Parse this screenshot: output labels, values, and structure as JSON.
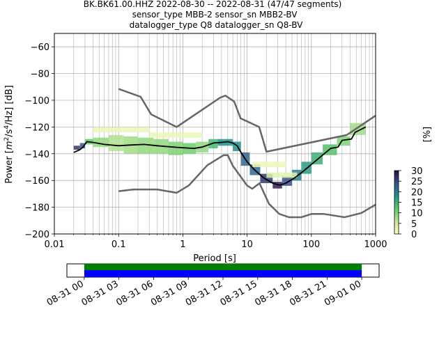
{
  "chart_data": {
    "type": "heatmap",
    "title_lines": [
      "BK.BK61.00.HHZ   2022-08-30 -- 2022-08-31  (47/47 segments)",
      "sensor_type MBB-2 sensor_sn MBB2-BV",
      "datalogger_type Q8 datalogger_sn Q8-BV"
    ],
    "xlabel": "Period [s]",
    "ylabel": "Power [m²/s⁴/Hz] [dB]",
    "ylabel_parts": {
      "pre": "Power [",
      "m": "m",
      "sup2": "2",
      "mid": "/s",
      "sup4": "4",
      "post": "/Hz] [dB]"
    },
    "xscale": "log",
    "xlim": [
      0.01,
      1000
    ],
    "ylim": [
      -200,
      -50
    ],
    "x_ticks": [
      {
        "v": 0.01,
        "label": "0.01"
      },
      {
        "v": 0.1,
        "label": "0.1"
      },
      {
        "v": 1,
        "label": "1"
      },
      {
        "v": 10,
        "label": "10"
      },
      {
        "v": 100,
        "label": "100"
      },
      {
        "v": 1000,
        "label": "1000"
      }
    ],
    "y_ticks": [
      {
        "v": -60,
        "label": "−60"
      },
      {
        "v": -80,
        "label": "−80"
      },
      {
        "v": -100,
        "label": "−100"
      },
      {
        "v": -120,
        "label": "−120"
      },
      {
        "v": -140,
        "label": "−140"
      },
      {
        "v": -160,
        "label": "−160"
      },
      {
        "v": -180,
        "label": "−180"
      },
      {
        "v": -200,
        "label": "−200"
      }
    ],
    "grid": true,
    "colorbar": {
      "label": "[%]",
      "range": [
        0,
        30
      ],
      "ticks": [
        {
          "v": 0,
          "label": "0"
        },
        {
          "v": 5,
          "label": "5"
        },
        {
          "v": 10,
          "label": "10"
        },
        {
          "v": 15,
          "label": "15"
        },
        {
          "v": 20,
          "label": "20"
        },
        {
          "v": 25,
          "label": "25"
        },
        {
          "v": 30,
          "label": "30"
        }
      ]
    },
    "nhnm": [
      [
        0.1,
        -91.5
      ],
      [
        0.22,
        -97.4
      ],
      [
        0.32,
        -110.5
      ],
      [
        0.8,
        -120
      ],
      [
        3.8,
        -98
      ],
      [
        4.6,
        -96.5
      ],
      [
        6.3,
        -101
      ],
      [
        7.9,
        -113.5
      ],
      [
        15.4,
        -120
      ],
      [
        20,
        -138.5
      ],
      [
        354.8,
        -126
      ],
      [
        1000,
        -111.5
      ]
    ],
    "nlnm": [
      [
        0.1,
        -168
      ],
      [
        0.17,
        -166.7
      ],
      [
        0.4,
        -166.7
      ],
      [
        0.8,
        -169.2
      ],
      [
        1.24,
        -163.7
      ],
      [
        2.4,
        -148.6
      ],
      [
        4.3,
        -141.1
      ],
      [
        5,
        -141.1
      ],
      [
        6,
        -149
      ],
      [
        10,
        -163.8
      ],
      [
        12,
        -166.2
      ],
      [
        15.6,
        -162.1
      ],
      [
        21.9,
        -177.5
      ],
      [
        31.6,
        -185
      ],
      [
        45,
        -187.5
      ],
      [
        70,
        -187.5
      ],
      [
        101,
        -185
      ],
      [
        154,
        -185
      ],
      [
        328,
        -187.5
      ],
      [
        600,
        -184.4
      ],
      [
        1000,
        -178
      ]
    ],
    "mode_curve": [
      [
        0.02,
        -139
      ],
      [
        0.025,
        -137
      ],
      [
        0.028,
        -135
      ],
      [
        0.032,
        -131
      ],
      [
        0.04,
        -131.5
      ],
      [
        0.06,
        -133
      ],
      [
        0.1,
        -134
      ],
      [
        0.15,
        -133.5
      ],
      [
        0.25,
        -133
      ],
      [
        0.4,
        -134
      ],
      [
        0.7,
        -135
      ],
      [
        1.0,
        -135.5
      ],
      [
        1.5,
        -136
      ],
      [
        2.0,
        -135
      ],
      [
        3.0,
        -132
      ],
      [
        4.0,
        -131.5
      ],
      [
        5.0,
        -131
      ],
      [
        6.0,
        -132
      ],
      [
        7.0,
        -134
      ],
      [
        8.0,
        -139
      ],
      [
        10,
        -146
      ],
      [
        13,
        -152
      ],
      [
        18,
        -158
      ],
      [
        25,
        -162
      ],
      [
        32,
        -163.5
      ],
      [
        40,
        -162
      ],
      [
        55,
        -158
      ],
      [
        75,
        -153
      ],
      [
        100,
        -148
      ],
      [
        150,
        -141
      ],
      [
        200,
        -136
      ],
      [
        260,
        -135
      ],
      [
        300,
        -130
      ],
      [
        420,
        -129
      ],
      [
        480,
        -124
      ],
      [
        700,
        -120
      ]
    ],
    "density": [
      {
        "x": [
          0.02,
          0.025
        ],
        "y": [
          -137,
          -134
        ],
        "pct": 26
      },
      {
        "x": [
          0.025,
          0.03
        ],
        "y": [
          -136,
          -132
        ],
        "pct": 24
      },
      {
        "x": [
          0.03,
          0.04
        ],
        "y": [
          -133,
          -129
        ],
        "pct": 12
      },
      {
        "x": [
          0.04,
          0.07
        ],
        "y": [
          -135,
          -128
        ],
        "pct": 9
      },
      {
        "x": [
          0.07,
          0.12
        ],
        "y": [
          -138,
          -126
        ],
        "pct": 7
      },
      {
        "x": [
          0.12,
          0.2
        ],
        "y": [
          -140,
          -127
        ],
        "pct": 8
      },
      {
        "x": [
          0.2,
          0.35
        ],
        "y": [
          -140,
          -128
        ],
        "pct": 9
      },
      {
        "x": [
          0.35,
          0.6
        ],
        "y": [
          -140,
          -129
        ],
        "pct": 9
      },
      {
        "x": [
          0.6,
          1.0
        ],
        "y": [
          -141,
          -131
        ],
        "pct": 10
      },
      {
        "x": [
          1.0,
          1.6
        ],
        "y": [
          -140,
          -132
        ],
        "pct": 11
      },
      {
        "x": [
          1.6,
          2.5
        ],
        "y": [
          -139,
          -131
        ],
        "pct": 9
      },
      {
        "x": [
          2.5,
          3.5
        ],
        "y": [
          -136,
          -129
        ],
        "pct": 14
      },
      {
        "x": [
          3.5,
          6.0
        ],
        "y": [
          -134,
          -129
        ],
        "pct": 18
      },
      {
        "x": [
          6.0,
          8.0
        ],
        "y": [
          -138,
          -131
        ],
        "pct": 18
      },
      {
        "x": [
          8.0,
          11
        ],
        "y": [
          -149,
          -139
        ],
        "pct": 22
      },
      {
        "x": [
          11,
          16
        ],
        "y": [
          -156,
          -148
        ],
        "pct": 22
      },
      {
        "x": [
          16,
          25
        ],
        "y": [
          -162,
          -155
        ],
        "pct": 26
      },
      {
        "x": [
          25,
          35
        ],
        "y": [
          -166,
          -161
        ],
        "pct": 28
      },
      {
        "x": [
          35,
          50
        ],
        "y": [
          -164,
          -157
        ],
        "pct": 24
      },
      {
        "x": [
          50,
          70
        ],
        "y": [
          -160,
          -152
        ],
        "pct": 20
      },
      {
        "x": [
          70,
          100
        ],
        "y": [
          -155,
          -146
        ],
        "pct": 17
      },
      {
        "x": [
          100,
          150
        ],
        "y": [
          -148,
          -139
        ],
        "pct": 15
      },
      {
        "x": [
          150,
          250
        ],
        "y": [
          -141,
          -133
        ],
        "pct": 13
      },
      {
        "x": [
          250,
          400
        ],
        "y": [
          -134,
          -127
        ],
        "pct": 10
      },
      {
        "x": [
          400,
          700
        ],
        "y": [
          -126,
          -117
        ],
        "pct": 8
      },
      {
        "x": [
          0.04,
          0.3
        ],
        "y": [
          -124,
          -120
        ],
        "pct": 2
      },
      {
        "x": [
          0.3,
          2.0
        ],
        "y": [
          -128,
          -124
        ],
        "pct": 2
      },
      {
        "x": [
          12,
          40
        ],
        "y": [
          -150,
          -146
        ],
        "pct": 2
      },
      {
        "x": [
          20,
          60
        ],
        "y": [
          -158,
          -154
        ],
        "pct": 3
      }
    ],
    "timeline": {
      "ticks": [
        "08-31 00",
        "08-31 03",
        "08-31 06",
        "08-31 09",
        "08-31 12",
        "08-31 15",
        "08-31 18",
        "08-31 21",
        "09-01 00"
      ],
      "range_hours": [
        -1.5,
        25.5
      ],
      "coverage_hours": [
        0,
        24
      ],
      "colors": {
        "green": "#008000",
        "blue": "#0000ff"
      }
    }
  }
}
